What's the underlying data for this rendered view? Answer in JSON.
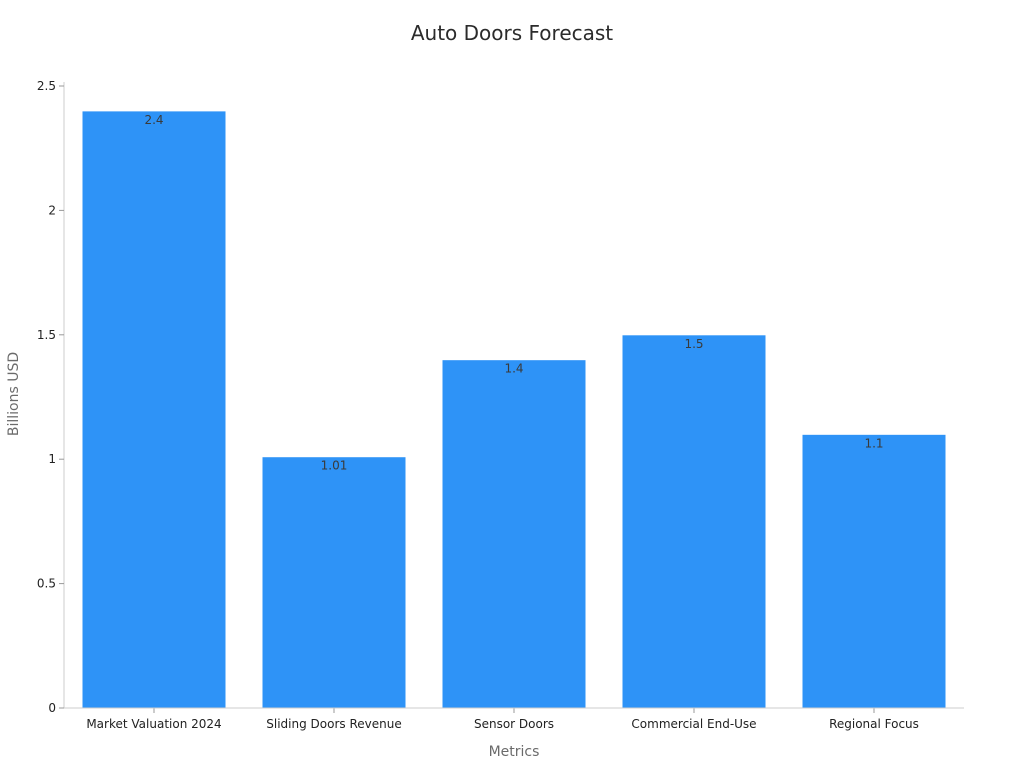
{
  "chart_data": {
    "type": "bar",
    "title": "Auto Doors Forecast",
    "xlabel": "Metrics",
    "ylabel": "Billions USD",
    "categories": [
      "Market Valuation 2024",
      "Sliding Doors Revenue",
      "Sensor Doors",
      "Commercial End-Use",
      "Regional Focus"
    ],
    "values": [
      2.4,
      1.01,
      1.4,
      1.5,
      1.1
    ],
    "data_labels": [
      "2.4",
      "1.01",
      "1.4",
      "1.5",
      "1.1"
    ],
    "ylim": [
      0,
      2.5
    ],
    "yticks": [
      0,
      0.5,
      1,
      1.5,
      2,
      2.5
    ],
    "ytick_labels": [
      "0",
      "0.5",
      "1",
      "1.5",
      "2",
      "2.5"
    ],
    "grid": false,
    "legend": "none",
    "bar_color": "#2e93f7",
    "bar_edge_color": "#ffffff"
  }
}
